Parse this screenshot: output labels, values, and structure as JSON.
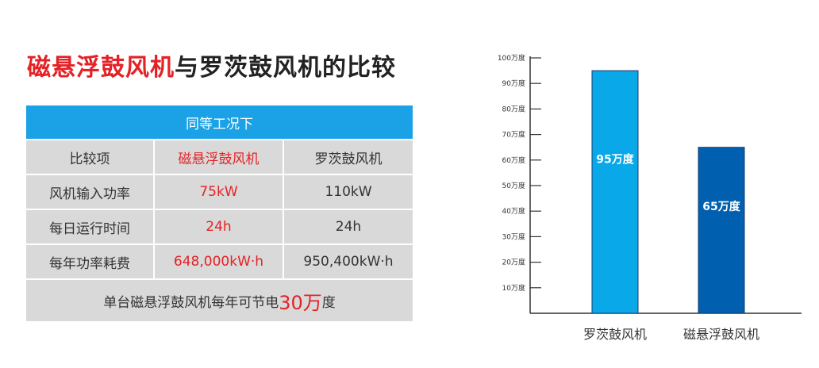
{
  "title": {
    "highlight": "磁悬浮鼓风机",
    "rest": "与罗茨鼓风机的比较"
  },
  "table": {
    "caption": "同等工况下",
    "headers": [
      "比较项",
      "磁悬浮鼓风机",
      "罗茨鼓风机"
    ],
    "rows": [
      [
        "风机输入功率",
        "75kW",
        "110kW"
      ],
      [
        "每日运行时间",
        "24h",
        "24h"
      ],
      [
        "每年功率耗费",
        "648,000kW·h",
        "950,400kW·h"
      ]
    ],
    "footer_before": "单台磁悬浮鼓风机每年可节电",
    "footer_value": "30万",
    "footer_after": "度"
  },
  "colors": {
    "accent_red": "#e42226",
    "table_header_blue": "#1aa1e6",
    "bar_light_blue": "#09a8e8",
    "bar_dark_blue": "#0060af"
  },
  "chart_data": {
    "type": "bar",
    "categories": [
      "罗茨鼓风机",
      "磁悬浮鼓风机"
    ],
    "values": [
      95,
      65
    ],
    "value_labels": [
      "95万度",
      "65万度"
    ],
    "bar_colors": [
      "#09a8e8",
      "#0060af"
    ],
    "ylim": [
      0,
      100
    ],
    "yticks": [
      10,
      20,
      30,
      40,
      50,
      60,
      70,
      80,
      90,
      100
    ],
    "ytick_labels": [
      "10万度",
      "20万度",
      "30万度",
      "40万度",
      "50万度",
      "60万度",
      "70万度",
      "80万度",
      "90万度",
      "100万度"
    ],
    "grid": false,
    "legend": false
  }
}
